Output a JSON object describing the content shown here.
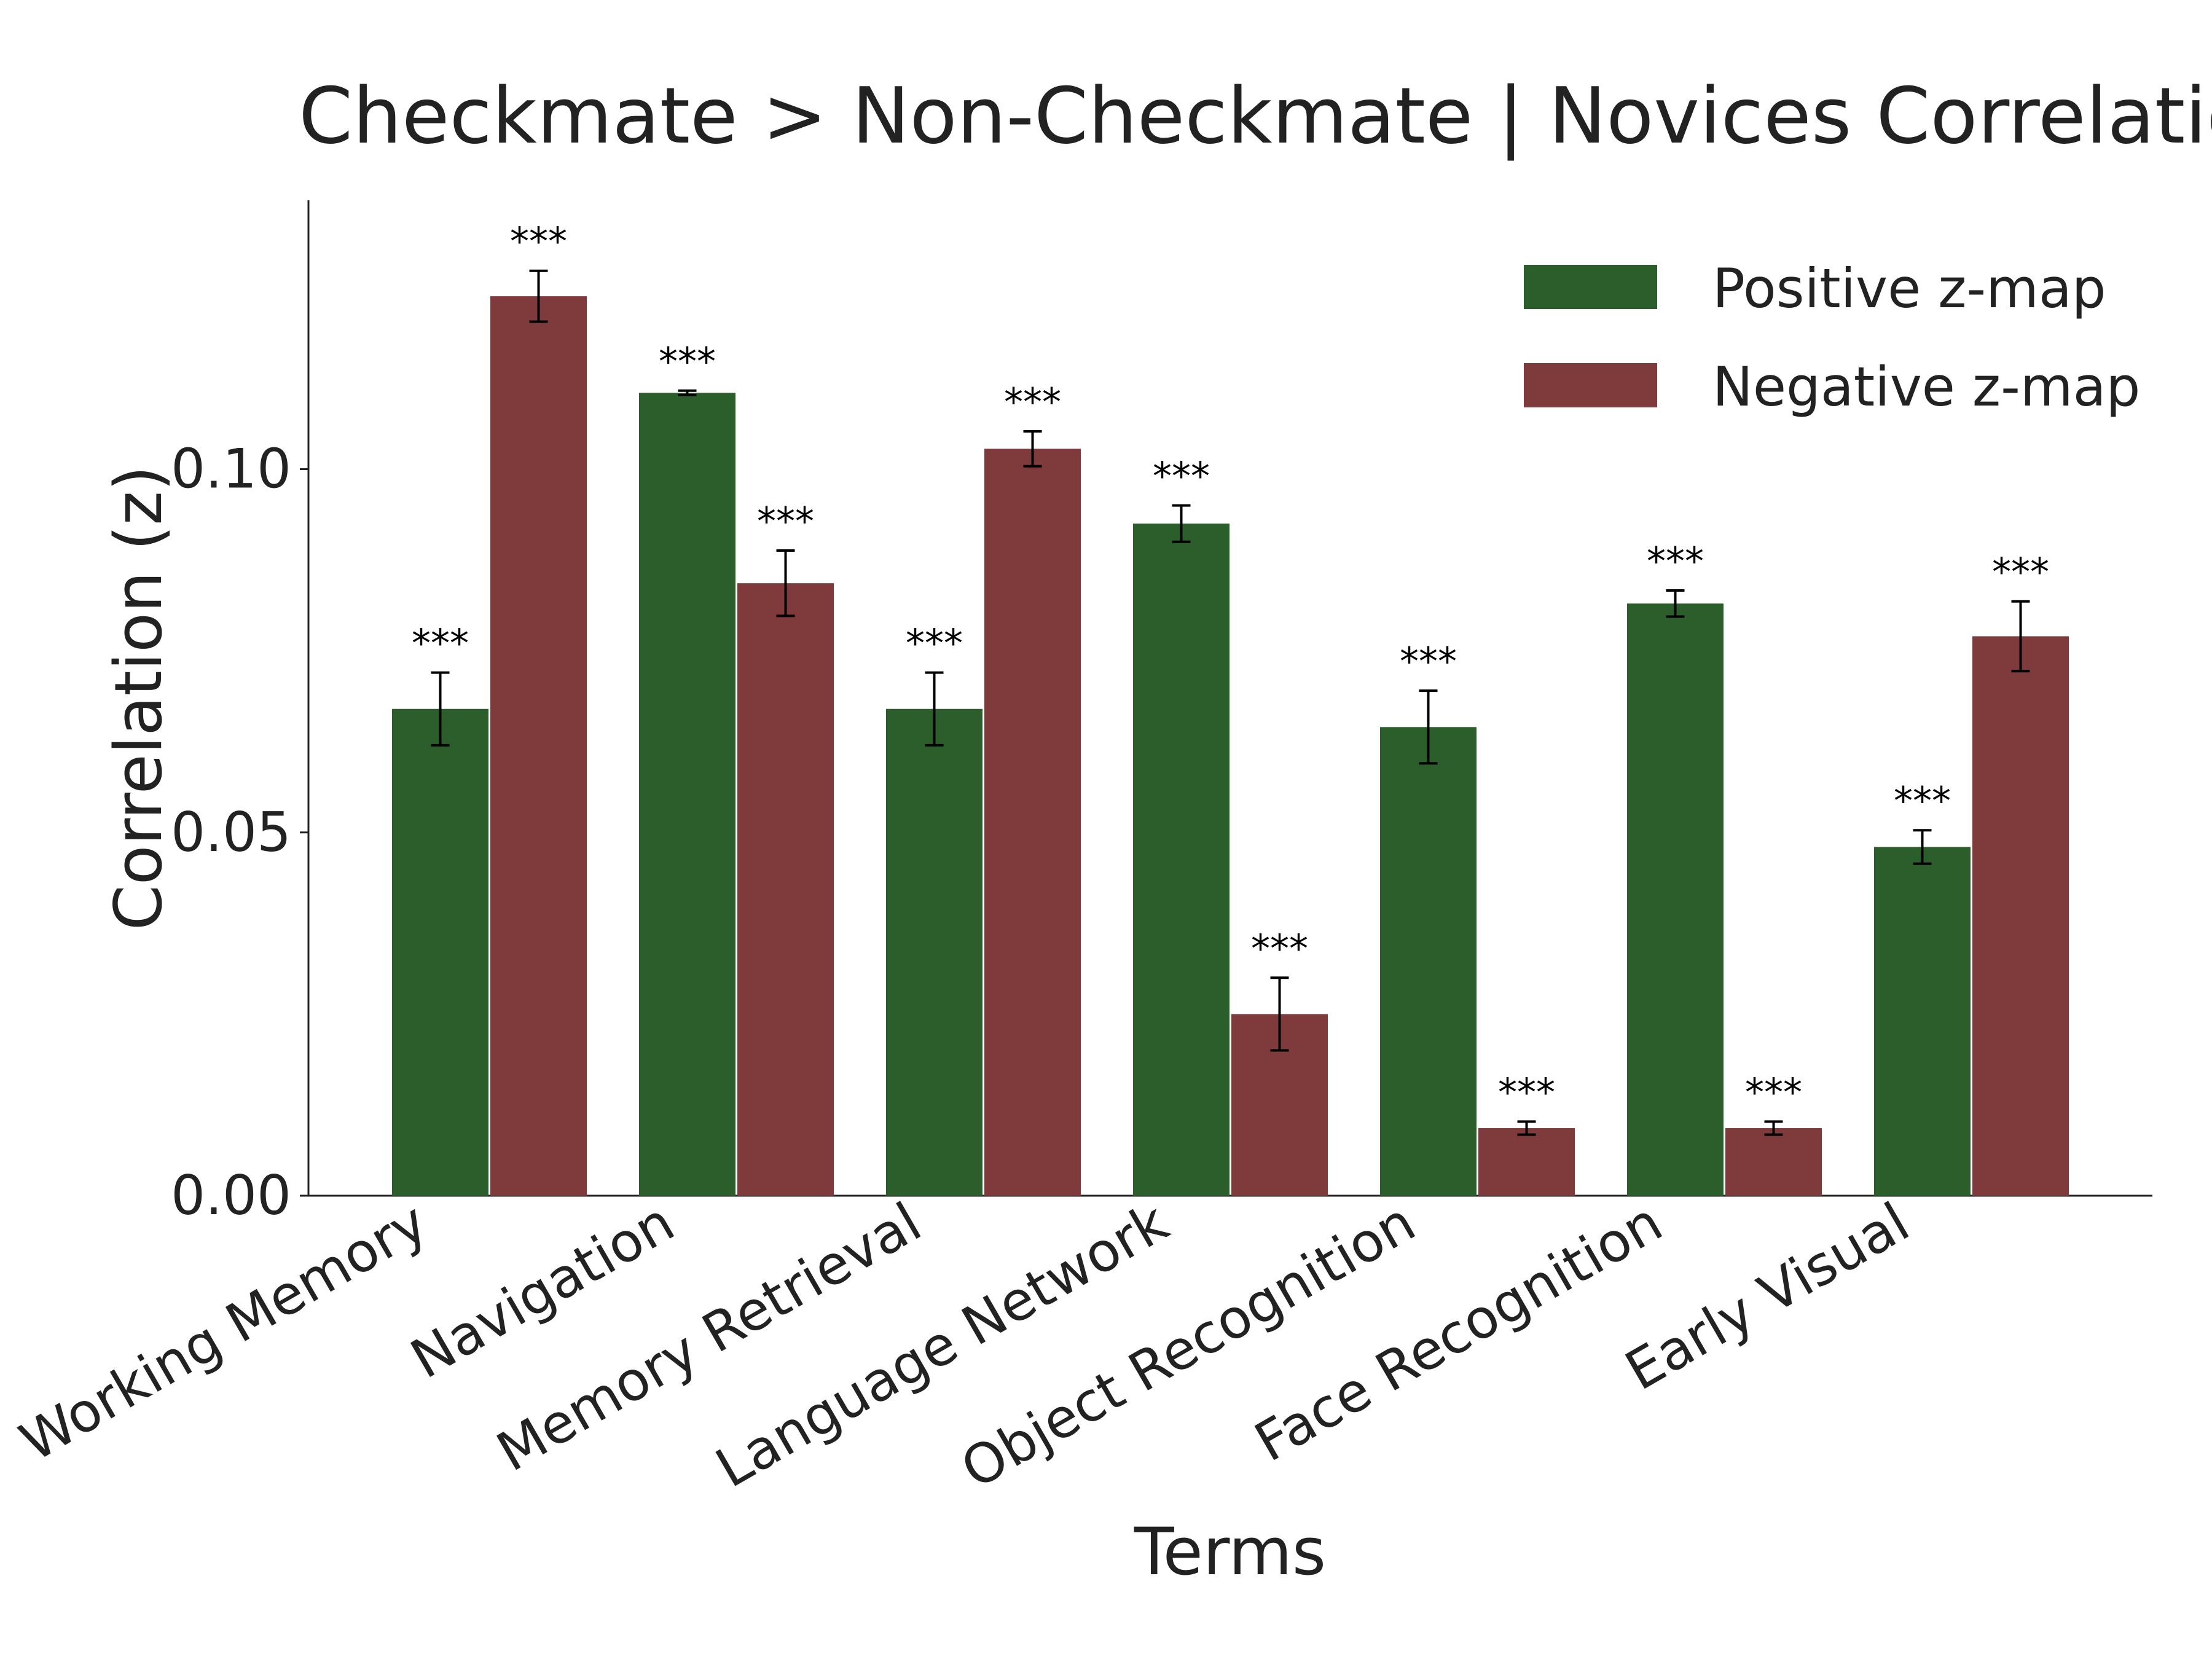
{
  "chart_data": {
    "type": "bar",
    "title": "Checkmate > Non-Checkmate | Novices Correlations",
    "xlabel": "Terms",
    "ylabel": "Correlation (z)",
    "ylim": [
      0,
      0.137
    ],
    "yticks": [
      0.0,
      0.05,
      0.1
    ],
    "ytick_labels": [
      "0.00",
      "0.05",
      "0.10"
    ],
    "grid": false,
    "legend_position": "top-right",
    "categories": [
      "Working Memory",
      "Navigation",
      "Memory Retrieval",
      "Language Network",
      "Object Recognition",
      "Face Recognition",
      "Early Visual"
    ],
    "series": [
      {
        "name": "Positive z-map",
        "color": "#2c5e2c",
        "values": [
          0.067,
          0.1105,
          0.067,
          0.0925,
          0.0645,
          0.0815,
          0.048
        ],
        "error": [
          0.005,
          0.0003,
          0.005,
          0.0025,
          0.005,
          0.0018,
          0.0023
        ],
        "significance": [
          "***",
          "***",
          "***",
          "***",
          "***",
          "***",
          "***"
        ]
      },
      {
        "name": "Negative z-map",
        "color": "#7f3b3b",
        "values": [
          0.1238,
          0.0843,
          0.1028,
          0.025,
          0.0093,
          0.0093,
          0.077
        ],
        "error": [
          0.0035,
          0.0045,
          0.0024,
          0.005,
          0.0009,
          0.0009,
          0.0048
        ],
        "significance": [
          "***",
          "***",
          "***",
          "***",
          "***",
          "***",
          "***"
        ]
      }
    ]
  }
}
